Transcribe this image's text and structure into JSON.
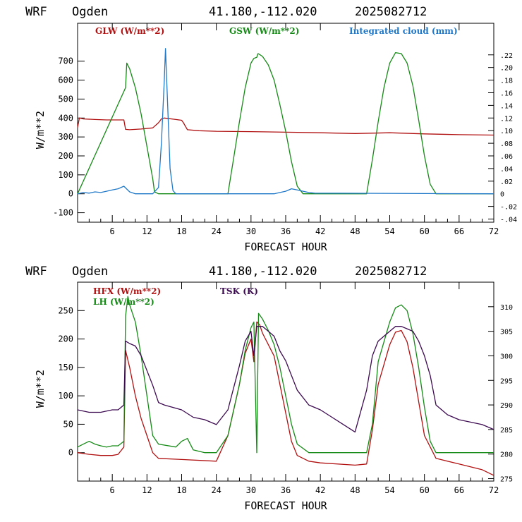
{
  "chart_data": [
    {
      "type": "line",
      "header": {
        "model": "WRF",
        "location": "Ogden",
        "coords": "41.180,-112.020",
        "run": "2025082712"
      },
      "xlabel": "FORECAST HOUR",
      "ylabel": "W/m**2",
      "xlim": [
        0,
        72
      ],
      "ylim": [
        -150,
        900
      ],
      "xticks": [
        6,
        12,
        18,
        24,
        30,
        36,
        42,
        48,
        54,
        60,
        66,
        72
      ],
      "yticks": [
        -100,
        0,
        100,
        200,
        300,
        400,
        500,
        600,
        700
      ],
      "right_axis": {
        "ylim": [
          -0.045,
          0.27
        ],
        "ticks": [
          -0.04,
          -0.02,
          0,
          0.02,
          0.04,
          0.06,
          0.08,
          0.1,
          0.12,
          0.14,
          0.16,
          0.18,
          0.2,
          0.22
        ],
        "labels": [
          "-.04",
          "-.02",
          "0",
          ".02",
          ".04",
          ".06",
          ".08",
          ".10",
          ".12",
          ".14",
          ".16",
          ".18",
          ".20",
          ".22"
        ]
      },
      "grid": false,
      "series": [
        {
          "name": "GLW (W/m**2)",
          "color": "#b01010",
          "axis": "left",
          "x": [
            0,
            0.3,
            1,
            3,
            5,
            8,
            8.3,
            9,
            11,
            13,
            14,
            14.5,
            15,
            17,
            18,
            18.3,
            19,
            21,
            24,
            30,
            36,
            42,
            48,
            54,
            60,
            66,
            72
          ],
          "y": [
            350,
            400,
            395,
            392,
            390,
            390,
            340,
            338,
            342,
            348,
            375,
            395,
            400,
            392,
            388,
            375,
            338,
            333,
            330,
            328,
            325,
            322,
            318,
            322,
            316,
            312,
            310
          ]
        },
        {
          "name": "GSW (W/m**2)",
          "color": "#168a16",
          "axis": "left",
          "x": [
            0,
            8.3,
            8.5,
            9,
            10,
            11,
            12,
            13,
            13.3,
            14,
            26,
            27,
            28,
            29,
            30,
            30.5,
            31,
            31.2,
            31.5,
            32,
            33,
            34,
            35,
            36,
            37,
            38,
            39,
            50,
            51,
            52,
            53,
            54,
            55,
            56,
            57,
            58,
            59,
            60,
            61,
            62,
            72
          ],
          "y": [
            0,
            560,
            690,
            660,
            560,
            420,
            250,
            80,
            10,
            0,
            0,
            190,
            380,
            560,
            690,
            715,
            720,
            740,
            735,
            725,
            680,
            600,
            470,
            330,
            170,
            40,
            0,
            0,
            180,
            380,
            560,
            690,
            745,
            740,
            690,
            570,
            390,
            200,
            50,
            0,
            0
          ]
        },
        {
          "name": "Integrated cloud (mm)",
          "color": "#1f78c8",
          "axis": "right",
          "x": [
            0,
            1,
            2,
            3,
            4,
            5,
            6,
            7,
            8,
            9,
            10,
            13,
            14,
            14.5,
            15,
            15.2,
            15.5,
            16,
            16.5,
            17,
            18,
            34,
            35,
            36,
            37,
            38,
            39,
            40,
            41,
            72
          ],
          "y": [
            0,
            0.002,
            0.001,
            0.003,
            0.002,
            0.004,
            0.006,
            0.008,
            0.012,
            0.003,
            0,
            0,
            0.01,
            0.08,
            0.18,
            0.23,
            0.16,
            0.04,
            0.005,
            0,
            0,
            0,
            0.002,
            0.004,
            0.008,
            0.006,
            0.004,
            0.002,
            0.001,
            0
          ]
        }
      ]
    },
    {
      "type": "line",
      "header": {
        "model": "WRF",
        "location": "Ogden",
        "coords": "41.180,-112.020",
        "run": "2025082712"
      },
      "xlabel": "FORECAST HOUR",
      "ylabel": "W/m**2",
      "xlim": [
        0,
        72
      ],
      "ylim": [
        -50,
        300
      ],
      "xticks": [
        6,
        12,
        18,
        24,
        30,
        36,
        42,
        48,
        54,
        60,
        66,
        72
      ],
      "yticks": [
        0,
        50,
        100,
        150,
        200,
        250
      ],
      "right_axis": {
        "ylim": [
          274.5,
          315
        ],
        "ticks": [
          275,
          280,
          285,
          290,
          295,
          300,
          305,
          310
        ],
        "labels": [
          "275",
          "280",
          "285",
          "290",
          "295",
          "300",
          "305",
          "310"
        ]
      },
      "grid": false,
      "series": [
        {
          "name": "HFX (W/m**2)",
          "color": "#b01010",
          "axis": "left",
          "x": [
            0,
            2,
            4,
            6,
            7,
            8,
            8.3,
            9,
            10,
            11,
            12,
            13,
            14,
            18,
            24,
            26,
            28,
            29,
            30,
            30.5,
            31,
            31.5,
            32,
            34,
            35,
            36,
            37,
            38,
            40,
            42,
            48,
            50,
            51,
            52,
            54,
            55,
            56,
            57,
            58,
            59,
            60,
            62,
            66,
            70,
            72
          ],
          "y": [
            0,
            -3,
            -5,
            -5,
            -3,
            10,
            180,
            150,
            100,
            60,
            30,
            0,
            -10,
            -12,
            -15,
            30,
            120,
            175,
            200,
            160,
            230,
            225,
            210,
            170,
            120,
            70,
            20,
            -5,
            -15,
            -18,
            -22,
            -20,
            40,
            120,
            190,
            212,
            215,
            195,
            150,
            90,
            30,
            -10,
            -20,
            -30,
            -40
          ]
        },
        {
          "name": "LH (W/m**2)",
          "color": "#168a16",
          "axis": "left",
          "x": [
            0,
            1,
            2,
            3,
            4,
            5,
            6,
            7,
            8,
            8.3,
            8.7,
            9,
            10,
            11,
            12,
            13,
            14,
            17,
            18,
            19,
            20,
            22,
            24,
            26,
            28,
            29,
            30,
            30.5,
            31,
            31.3,
            32,
            33,
            34,
            35,
            36,
            37,
            38,
            40,
            42,
            48,
            50,
            51,
            52,
            54,
            55,
            56,
            57,
            58,
            59,
            60,
            61,
            62,
            66,
            72
          ],
          "y": [
            10,
            15,
            20,
            15,
            12,
            10,
            12,
            12,
            20,
            240,
            275,
            260,
            230,
            170,
            100,
            30,
            15,
            10,
            20,
            25,
            5,
            0,
            0,
            30,
            120,
            180,
            220,
            230,
            0,
            245,
            235,
            215,
            190,
            150,
            100,
            50,
            15,
            0,
            0,
            0,
            0,
            50,
            160,
            230,
            255,
            260,
            250,
            210,
            150,
            80,
            20,
            0,
            0,
            0
          ]
        },
        {
          "name": "TSK (K)",
          "color": "#3c0a50",
          "axis": "right",
          "x": [
            0,
            2,
            4,
            6,
            7,
            8,
            8.3,
            9,
            10,
            11,
            12,
            13,
            14,
            15,
            18,
            20,
            22,
            24,
            26,
            28,
            29,
            30,
            30.5,
            31,
            31.5,
            32,
            33,
            34,
            35,
            36,
            38,
            40,
            42,
            44,
            46,
            48,
            50,
            51,
            52,
            54,
            55,
            56,
            57,
            58,
            59,
            60,
            61,
            62,
            64,
            66,
            70,
            72
          ],
          "y": [
            289,
            288.5,
            288.5,
            289,
            289,
            290,
            303,
            302.5,
            302,
            300,
            297,
            294,
            290.5,
            290,
            289,
            287.5,
            287,
            286,
            289,
            298,
            303,
            305,
            300,
            306,
            306,
            306,
            305,
            304,
            301,
            299,
            293,
            290,
            289,
            287.5,
            286,
            284.5,
            293,
            300,
            303,
            305,
            306,
            306,
            305.5,
            305,
            303,
            300,
            296,
            290,
            288,
            287,
            286,
            285
          ]
        }
      ]
    }
  ]
}
